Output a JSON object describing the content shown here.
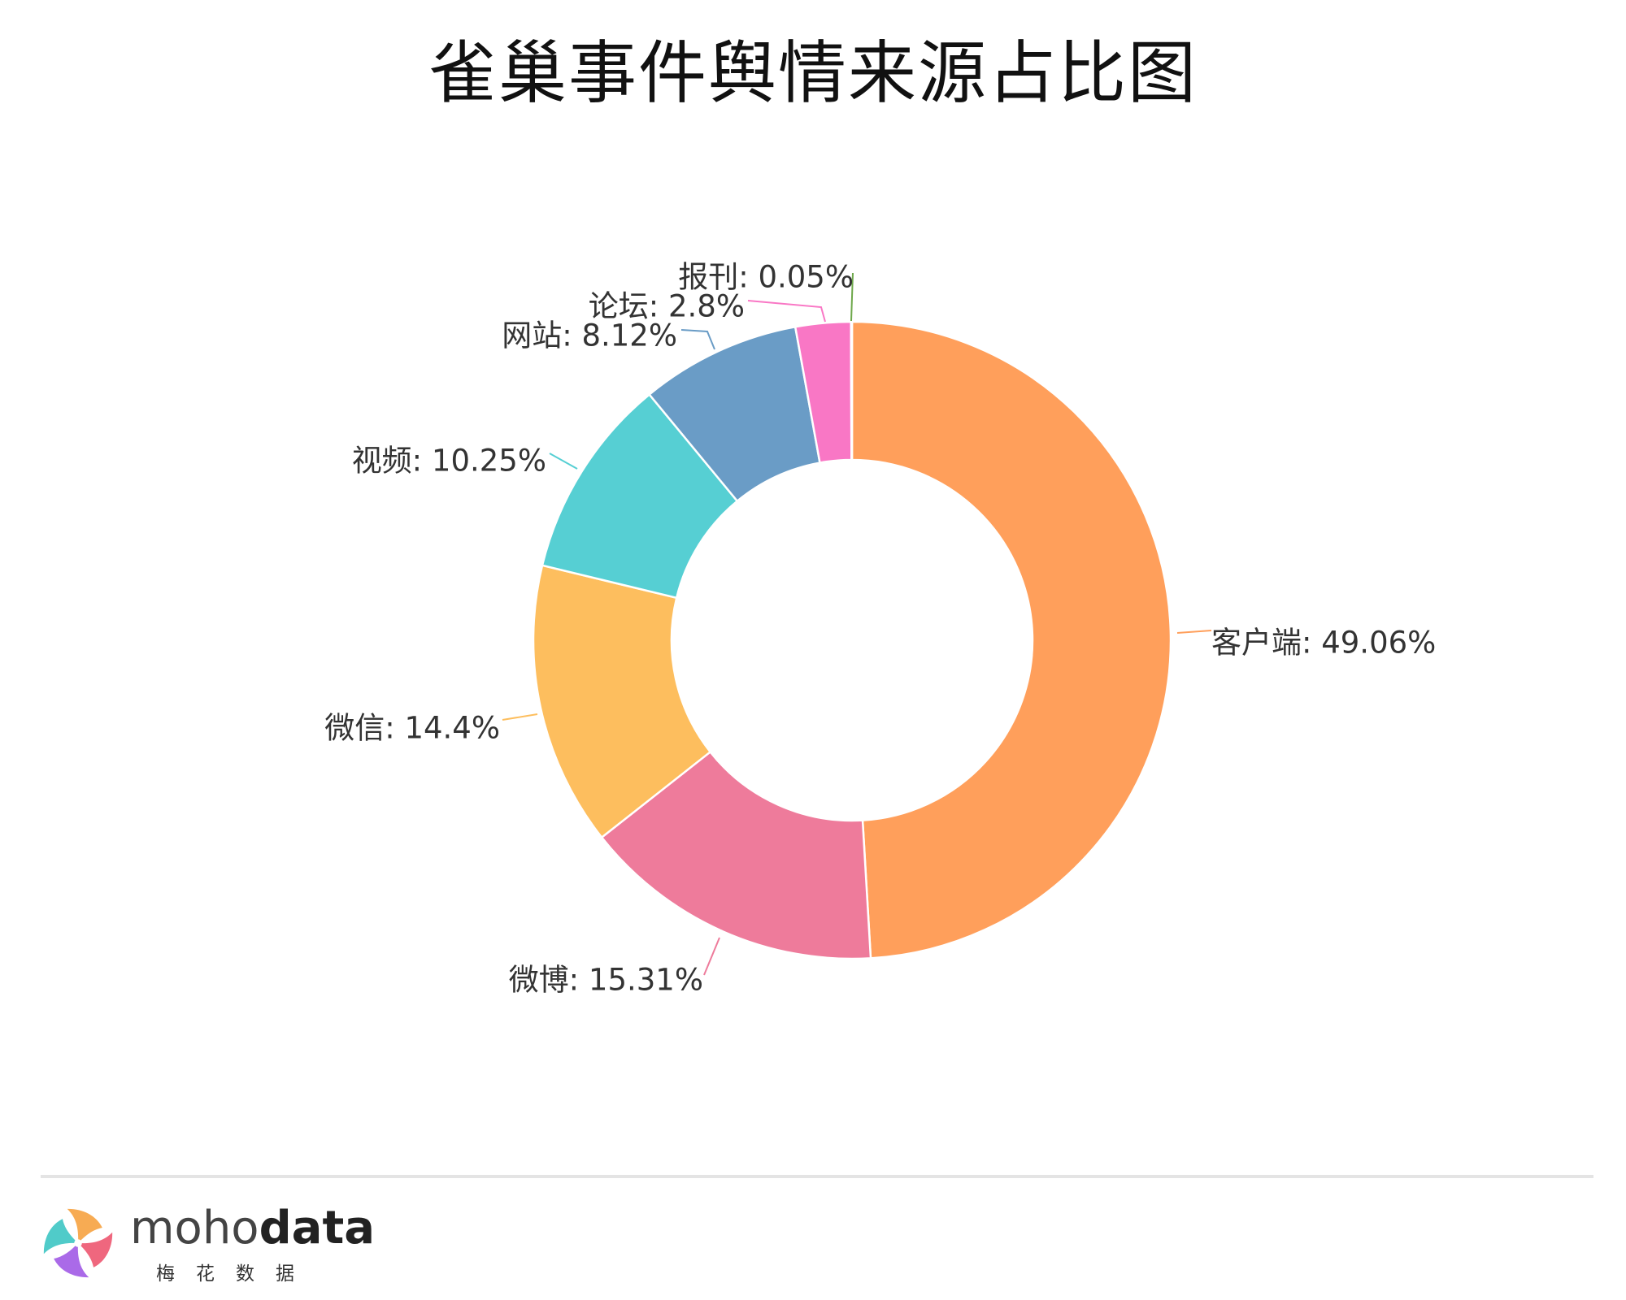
{
  "chart_data": {
    "type": "pie",
    "variant": "donut",
    "title": "雀巢事件舆情来源占比图",
    "label_format": "{name}: {value}%",
    "slices": [
      {
        "name": "客户端",
        "value": 49.06,
        "color": "#ff9f5b"
      },
      {
        "name": "微博",
        "value": 15.31,
        "color": "#ee7b9b"
      },
      {
        "name": "微信",
        "value": 14.4,
        "color": "#fdbe5e"
      },
      {
        "name": "视频",
        "value": 10.25,
        "color": "#56cfd3"
      },
      {
        "name": "网站",
        "value": 8.12,
        "color": "#6a9cc6"
      },
      {
        "name": "论坛",
        "value": 2.8,
        "color": "#f977c5"
      },
      {
        "name": "报刊",
        "value": 0.05,
        "color": "#6ea84b"
      }
    ],
    "start_angle": "top (12 o'clock)",
    "direction": "clockwise",
    "legend": "none"
  },
  "footer": {
    "brand_light": "moho",
    "brand_bold": "data",
    "brand_subtitle": "梅花数据"
  },
  "logo_colors": [
    "#f6a444",
    "#ee5a73",
    "#a35de6",
    "#41c7c4"
  ]
}
